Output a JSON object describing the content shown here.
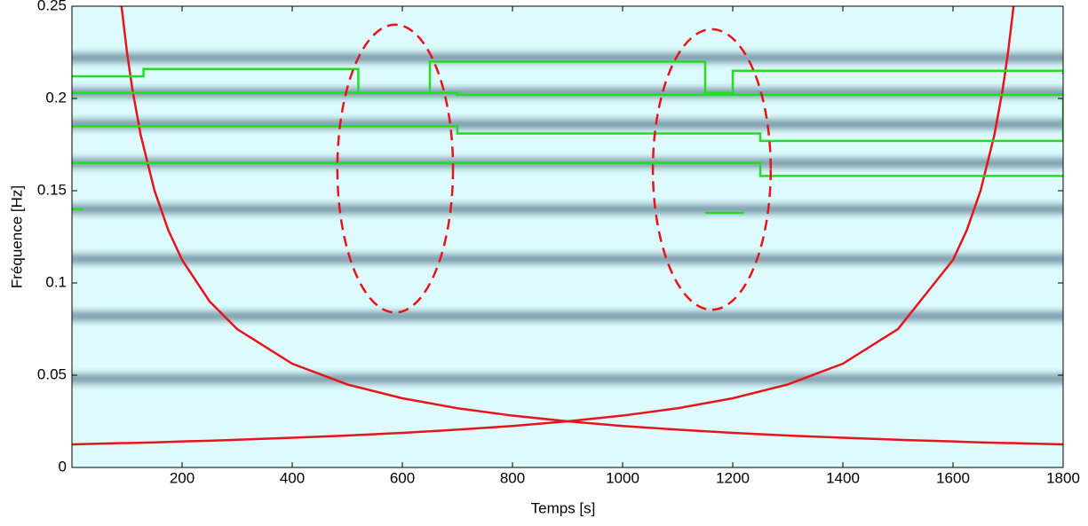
{
  "chart_data": {
    "type": "line",
    "xlabel": "Temps  [s]",
    "ylabel": "Fréquence  [Hz]",
    "xlim": [
      0,
      1800
    ],
    "ylim": [
      0,
      0.25
    ],
    "xticks": [
      200,
      400,
      600,
      800,
      1000,
      1200,
      1400,
      1600,
      1800
    ],
    "yticks": [
      0,
      0.05,
      0.1,
      0.15,
      0.2,
      0.25
    ],
    "background": "#ddfbfc",
    "bands": {
      "color": "#1d3f5c",
      "values": [
        0.222,
        0.203,
        0.186,
        0.165,
        0.14,
        0.113,
        0.082,
        0.048
      ]
    },
    "series": [
      {
        "type": "line",
        "color": "#e8141c",
        "x": [
          0,
          90,
          100,
          110,
          125,
          150,
          175,
          200,
          250,
          300,
          400,
          500,
          600,
          700,
          800,
          900,
          1000,
          1100,
          1200,
          1300,
          1400,
          1500,
          1600,
          1625,
          1650,
          1675,
          1690,
          1700,
          1710,
          1800
        ],
        "values": [
          null,
          0.25,
          0.225,
          0.2045,
          0.18,
          0.15,
          0.1286,
          0.1125,
          0.09,
          0.075,
          0.05625,
          0.045,
          0.0375,
          0.0321,
          0.0281,
          0.025,
          0.0225,
          0.0205,
          0.01875,
          0.0173,
          0.0161,
          0.015,
          0.0141,
          0.0138,
          0.0136,
          0.0134,
          0.0133,
          0.0132,
          0.0132,
          0.0125
        ]
      },
      {
        "type": "line",
        "color": "#e8141c",
        "x": [
          0,
          90,
          100,
          110,
          125,
          150,
          175,
          200,
          250,
          300,
          400,
          500,
          600,
          700,
          800,
          900,
          1000,
          1100,
          1200,
          1300,
          1400,
          1500,
          1600,
          1625,
          1650,
          1675,
          1690,
          1700,
          1710,
          1800
        ],
        "values": [
          0.0125,
          0.0132,
          0.0132,
          0.0133,
          0.0134,
          0.0136,
          0.0138,
          0.0141,
          0.0145,
          0.015,
          0.0161,
          0.0173,
          0.01875,
          0.0205,
          0.0225,
          0.025,
          0.0281,
          0.0321,
          0.0375,
          0.045,
          0.05625,
          0.075,
          0.1125,
          0.1286,
          0.15,
          0.18,
          0.2045,
          0.225,
          0.25,
          null
        ]
      },
      {
        "type": "step",
        "color": "#22dd22",
        "x": [
          0,
          130,
          520,
          650,
          1150,
          1200,
          1800
        ],
        "values": [
          0.212,
          0.216,
          0.203,
          0.22,
          0.203,
          0.215,
          0.213
        ]
      },
      {
        "type": "step",
        "color": "#22dd22",
        "x": [
          0,
          500,
          700,
          1200,
          1800
        ],
        "values": [
          0.203,
          0.203,
          0.202,
          0.202,
          0.202
        ]
      },
      {
        "type": "step",
        "color": "#22dd22",
        "x": [
          0,
          500,
          700,
          1150,
          1250,
          1700,
          1800
        ],
        "values": [
          0.185,
          0.185,
          0.181,
          0.181,
          0.177,
          0.177,
          0.2
        ]
      },
      {
        "type": "step",
        "color": "#22dd22",
        "x": [
          0,
          1150,
          1250,
          1800
        ],
        "values": [
          0.165,
          0.165,
          0.158,
          0.158
        ]
      },
      {
        "type": "step",
        "color": "#22dd22",
        "x": [
          0,
          20
        ],
        "values": [
          0.14,
          0.14
        ]
      },
      {
        "type": "step",
        "color": "#22dd22",
        "x": [
          1150,
          1220
        ],
        "values": [
          0.138,
          0.138
        ]
      }
    ],
    "ellipses": {
      "color": "#e8141c",
      "items": [
        {
          "cx": 587,
          "cy": 0.162,
          "rx": 105,
          "ry": 0.078
        },
        {
          "cx": 1162,
          "cy": 0.1615,
          "rx": 107,
          "ry": 0.076
        }
      ]
    }
  }
}
